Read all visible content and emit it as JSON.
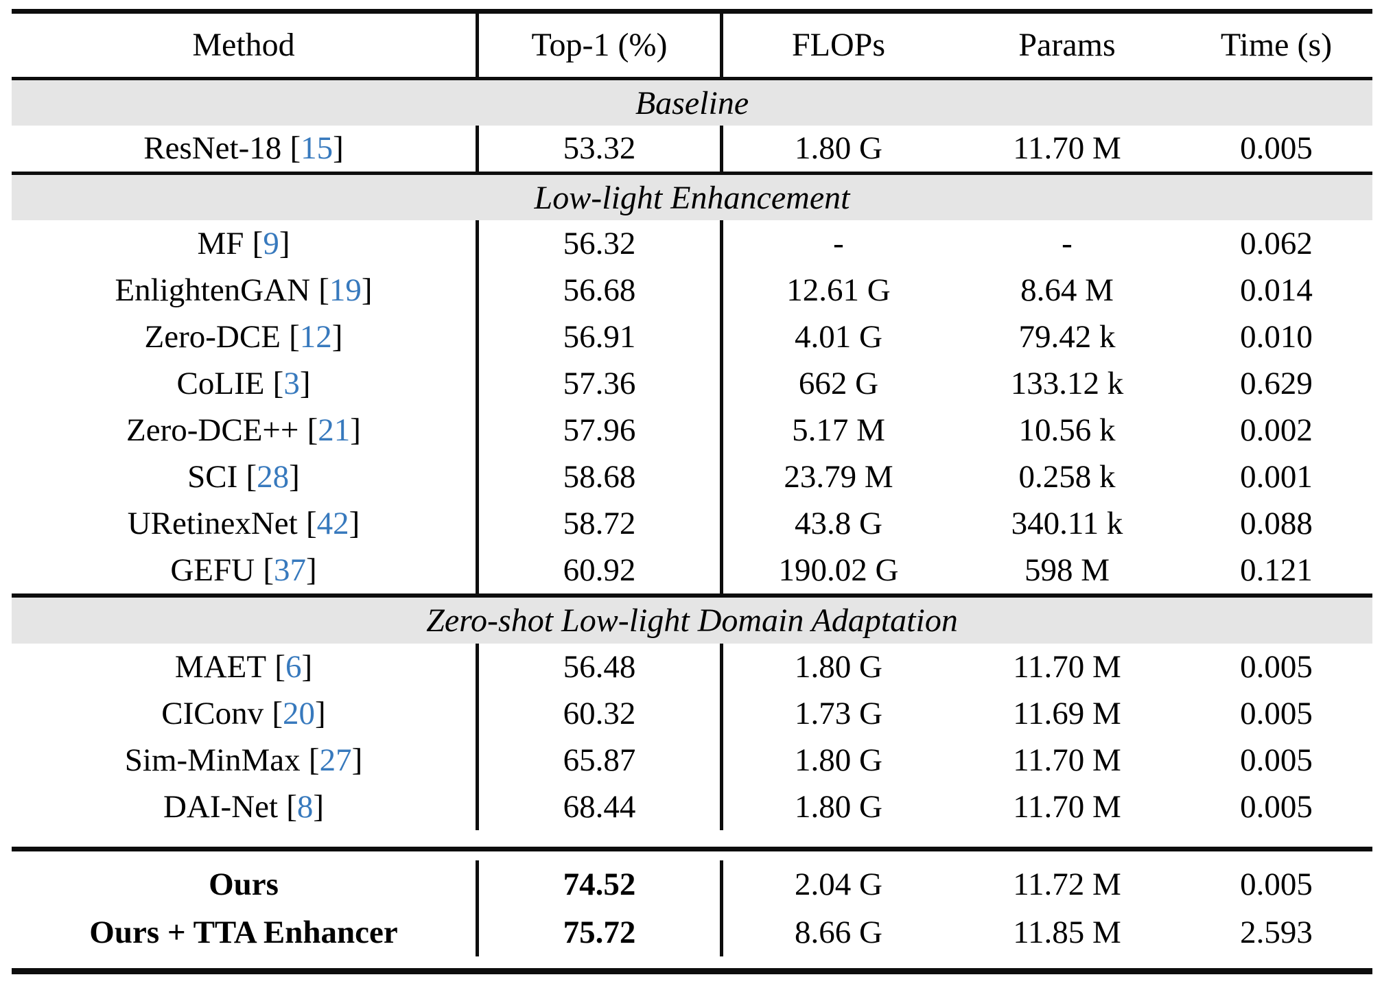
{
  "columns": {
    "method": "Method",
    "top1": "Top-1 (%)",
    "flops": "FLOPs",
    "params": "Params",
    "time": "Time (s)"
  },
  "colors": {
    "citation_blue": "#3779bd",
    "section_band_gray": "#e5e5e5",
    "rule_black": "#0d0d0d"
  },
  "sections": [
    {
      "label": "Baseline",
      "rows": [
        {
          "method": "ResNet-18",
          "cite": "15",
          "top1": "53.32",
          "flops": "1.80 G",
          "params": "11.70 M",
          "time": "0.005"
        }
      ]
    },
    {
      "label": "Low-light Enhancement",
      "rows": [
        {
          "method": "MF",
          "cite": "9",
          "top1": "56.32",
          "flops": "-",
          "params": "-",
          "time": "0.062"
        },
        {
          "method": "EnlightenGAN",
          "cite": "19",
          "top1": "56.68",
          "flops": "12.61 G",
          "params": "8.64 M",
          "time": "0.014"
        },
        {
          "method": "Zero-DCE",
          "cite": "12",
          "top1": "56.91",
          "flops": "4.01 G",
          "params": "79.42 k",
          "time": "0.010"
        },
        {
          "method": "CoLIE",
          "cite": "3",
          "top1": "57.36",
          "flops": "662 G",
          "params": "133.12 k",
          "time": "0.629"
        },
        {
          "method": "Zero-DCE++",
          "cite": "21",
          "top1": "57.96",
          "flops": "5.17 M",
          "params": "10.56 k",
          "time": "0.002"
        },
        {
          "method": "SCI",
          "cite": "28",
          "top1": "58.68",
          "flops": "23.79 M",
          "params": "0.258 k",
          "time": "0.001"
        },
        {
          "method": "URetinexNet",
          "cite": "42",
          "top1": "58.72",
          "flops": "43.8 G",
          "params": "340.11 k",
          "time": "0.088"
        },
        {
          "method": "GEFU",
          "cite": "37",
          "top1": "60.92",
          "flops": "190.02 G",
          "params": "598 M",
          "time": "0.121"
        }
      ]
    },
    {
      "label": "Zero-shot Low-light Domain Adaptation",
      "rows": [
        {
          "method": "MAET",
          "cite": "6",
          "top1": "56.48",
          "flops": "1.80 G",
          "params": "11.70 M",
          "time": "0.005"
        },
        {
          "method": "CIConv",
          "cite": "20",
          "top1": "60.32",
          "flops": "1.73 G",
          "params": "11.69 M",
          "time": "0.005"
        },
        {
          "method": "Sim-MinMax",
          "cite": "27",
          "top1": "65.87",
          "flops": "1.80 G",
          "params": "11.70 M",
          "time": "0.005"
        },
        {
          "method": "DAI-Net",
          "cite": "8",
          "top1": "68.44",
          "flops": "1.80 G",
          "params": "11.70 M",
          "time": "0.005"
        }
      ]
    },
    {
      "label": "",
      "rows": [
        {
          "method": "Ours",
          "top1": "74.52",
          "flops": "2.04 G",
          "params": "11.72 M",
          "time": "0.005"
        },
        {
          "method": "Ours + TTA Enhancer",
          "top1": "75.72",
          "flops": "8.66 G",
          "params": "11.85 M",
          "time": "2.593"
        }
      ]
    }
  ]
}
